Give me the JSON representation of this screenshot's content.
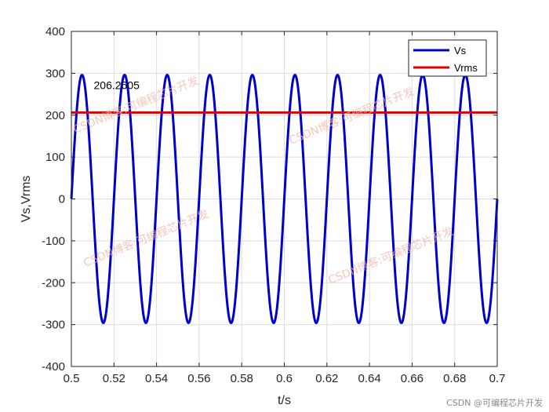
{
  "chart_data": {
    "type": "line",
    "xlabel": "t/s",
    "ylabel": "Vs,Vrms",
    "xlim": [
      0.5,
      0.7
    ],
    "ylim": [
      -400,
      400
    ],
    "xticks": [
      "0.5",
      "0.52",
      "0.54",
      "0.56",
      "0.58",
      "0.6",
      "0.62",
      "0.64",
      "0.66",
      "0.68",
      "0.7"
    ],
    "yticks": [
      "-400",
      "-300",
      "-200",
      "-100",
      "0",
      "100",
      "200",
      "300",
      "400"
    ],
    "grid": true,
    "legend_position": "top-right",
    "series": [
      {
        "name": "Vs",
        "color": "#0000cc",
        "kind": "sine",
        "amplitude": 296,
        "frequency_hz": 50,
        "peak_time": 0.505
      },
      {
        "name": "Vrms",
        "color": "#dd0000",
        "kind": "constant",
        "value": 206.2605
      }
    ],
    "annotations": [
      {
        "text": "206.2605",
        "x": 0.5105,
        "y": 272
      }
    ]
  },
  "watermarks": [
    "CSDN博客:可编程芯片开发",
    "CSDN博客:可编程芯片开发",
    "CSDN博客:可编程芯片开发",
    "CSDN博客:可编程芯片开发"
  ],
  "footer": {
    "credit": "CSDN @可编程芯片开发"
  }
}
